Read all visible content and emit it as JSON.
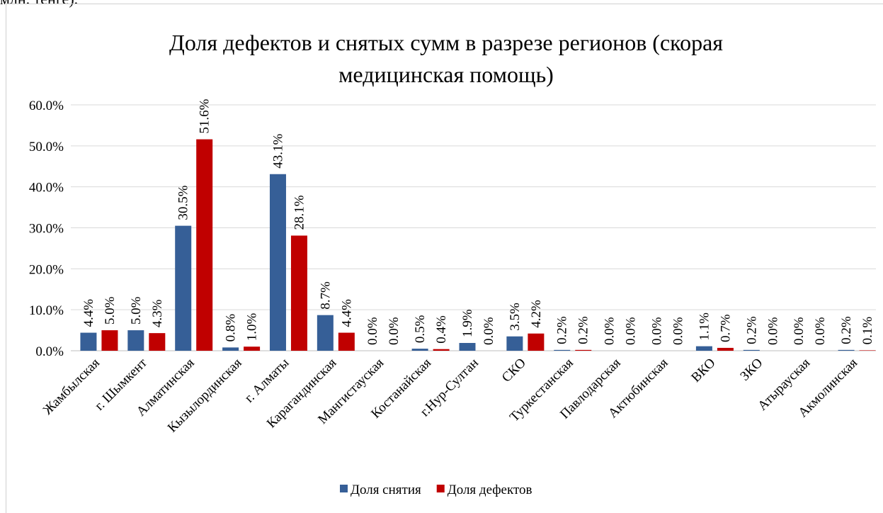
{
  "text_above": "млн. тенге).",
  "chart_data": {
    "type": "bar",
    "title": "Доля дефектов и снятых сумм в разрезе регионов (скорая медицинская помощь)",
    "categories": [
      "Жамбылская",
      "г. Шымкент",
      "Алматинская",
      "Кызылординская",
      "г. Алматы",
      "Карагандинская",
      "Мангистауская",
      "Костанайская",
      "г.Нур-Султан",
      "СКО",
      "Туркестанская",
      "Павлодарская",
      "Актюбинская",
      "ВКО",
      "ЗКО",
      "Атырауская",
      "Акмолинская"
    ],
    "series": [
      {
        "name": "Доля снятия",
        "color": "#365f97",
        "values": [
          4.4,
          5.0,
          30.5,
          0.8,
          43.1,
          8.7,
          0.0,
          0.5,
          1.9,
          3.5,
          0.2,
          0.0,
          0.0,
          1.1,
          0.2,
          0.0,
          0.2
        ],
        "value_labels": [
          "4.4%",
          "5.0%",
          "30.5%",
          "0.8%",
          "43.1%",
          "8.7%",
          "0.0%",
          "0.5%",
          "1.9%",
          "3.5%",
          "0.2%",
          "0.0%",
          "0.0%",
          "1.1%",
          "0.2%",
          "0.0%",
          "0.2%"
        ]
      },
      {
        "name": "Доля дефектов",
        "color": "#c00000",
        "values": [
          5.0,
          4.3,
          51.6,
          1.0,
          28.1,
          4.4,
          0.0,
          0.4,
          0.0,
          4.2,
          0.2,
          0.0,
          0.0,
          0.7,
          0.0,
          0.0,
          0.1
        ],
        "value_labels": [
          "5.0%",
          "4.3%",
          "51.6%",
          "1.0%",
          "28.1%",
          "4.4%",
          "0.0%",
          "0.4%",
          "0.0%",
          "4.2%",
          "0.2%",
          "0.0%",
          "0.0%",
          "0.7%",
          "0.0%",
          "0.0%",
          "0.1%"
        ]
      }
    ],
    "ylim": [
      0,
      60
    ],
    "yticks": [
      {
        "value": 0,
        "label": "0.0%"
      },
      {
        "value": 10,
        "label": "10.0%"
      },
      {
        "value": 20,
        "label": "20.0%"
      },
      {
        "value": 30,
        "label": "30.0%"
      },
      {
        "value": 40,
        "label": "40.0%"
      },
      {
        "value": 50,
        "label": "50.0%"
      },
      {
        "value": 60,
        "label": "60.0%"
      }
    ],
    "grid": true,
    "legend": "bottom"
  }
}
